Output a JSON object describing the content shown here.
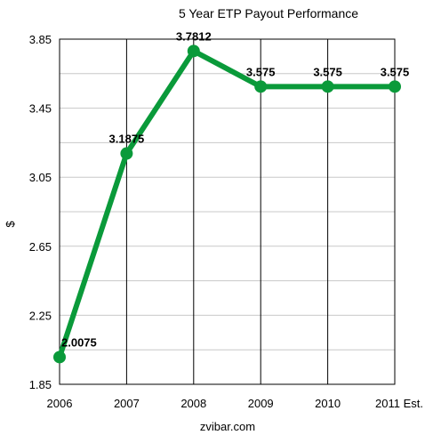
{
  "chart_data": {
    "type": "line",
    "title": "5 Year ETP Payout Performance",
    "xlabel": "zvibar.com",
    "ylabel": "$",
    "categories": [
      "2006",
      "2007",
      "2008",
      "2009",
      "2010",
      "2011 Est."
    ],
    "series": [
      {
        "values": [
          2.0075,
          3.1875,
          3.7812,
          3.575,
          3.575,
          3.575
        ],
        "data_labels": [
          "2.0075",
          "3.1875",
          "3.7812",
          "3.575",
          "3.575",
          "3.575"
        ],
        "color": "#0a9a3a"
      }
    ],
    "ylim": [
      1.85,
      3.85
    ],
    "yticks": [
      1.85,
      2.25,
      2.65,
      3.05,
      3.45,
      3.85
    ],
    "ytick_labels": [
      "1.85",
      "2.25",
      "2.65",
      "3.05",
      "3.45",
      "3.85"
    ],
    "grid": true,
    "legend": "none"
  }
}
